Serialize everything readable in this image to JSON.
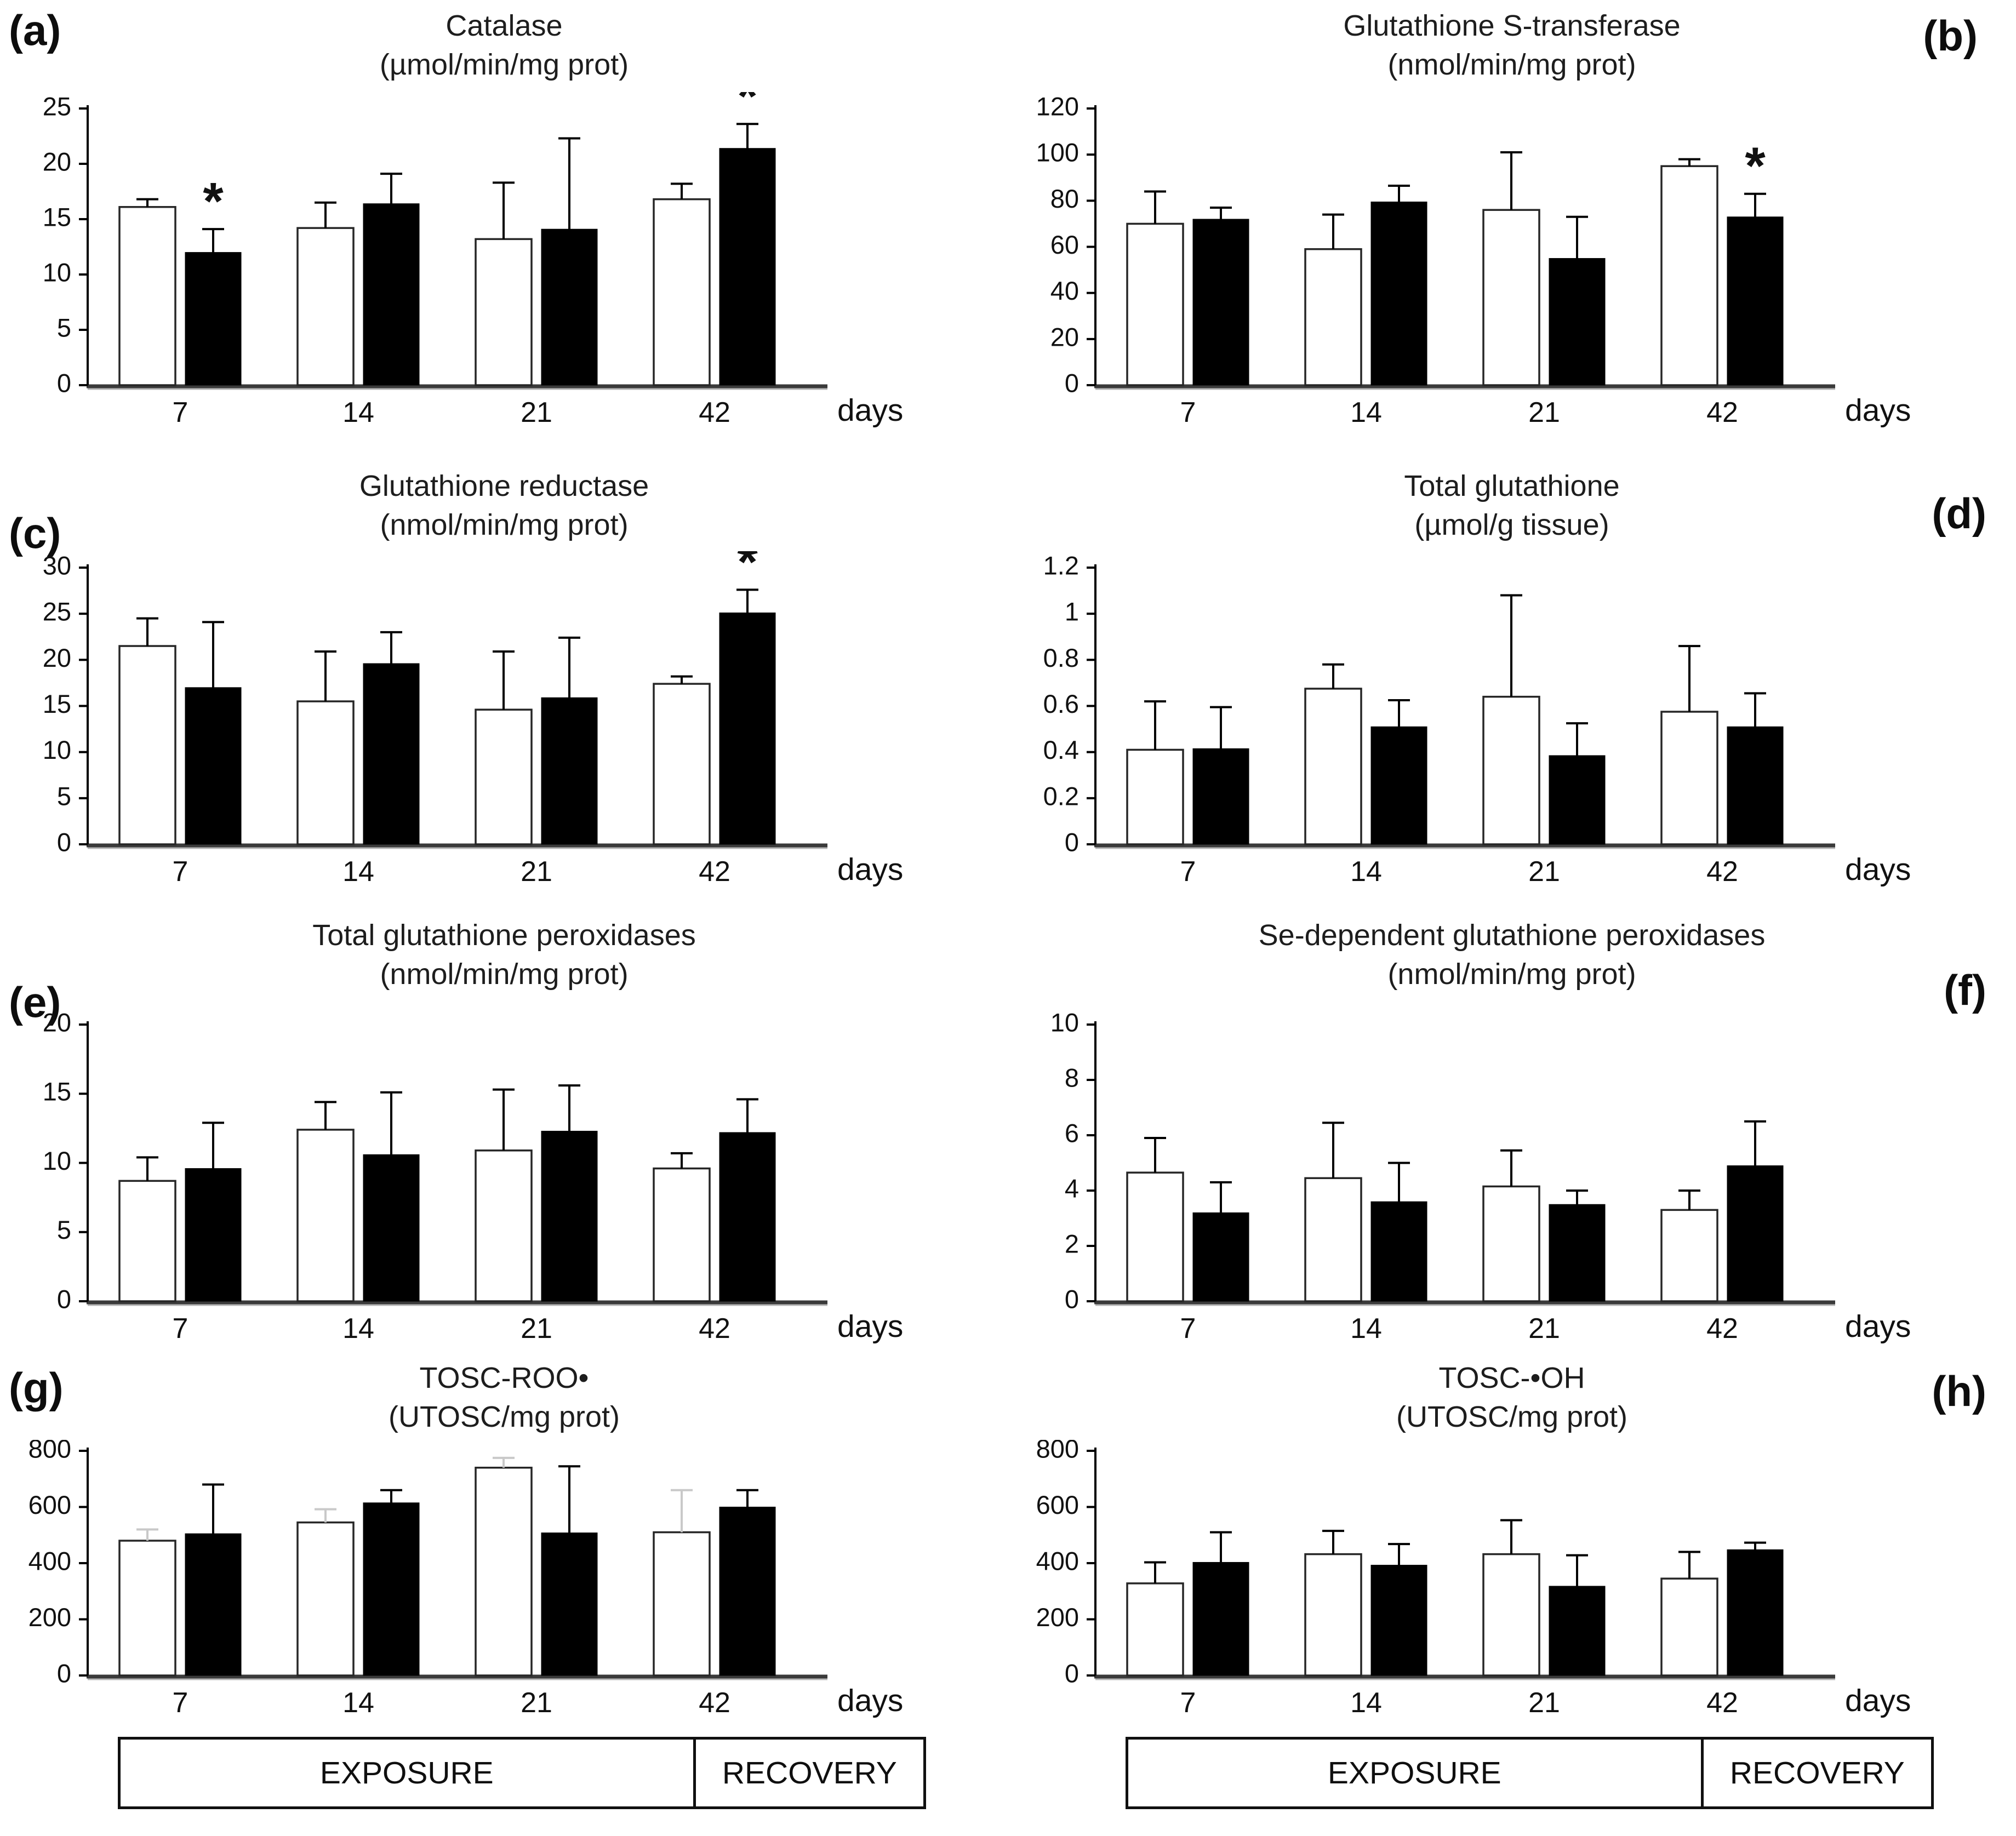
{
  "figure": {
    "phase_bar": {
      "exposure_label": "EXPOSURE",
      "recovery_label": "RECOVERY"
    },
    "colors": {
      "white_bar_fill": "#ffffff",
      "white_bar_stroke": "#262626",
      "black_bar_fill": "#000000",
      "gray_error_bar": "#c9c9c9",
      "axis": "#3a3a3a"
    }
  },
  "chart_data": [
    {
      "letter": "(a)",
      "title": "Catalase",
      "unit": "(µmol/min/mg prot)",
      "type": "bar",
      "categories": [
        "7",
        "14",
        "21",
        "42"
      ],
      "xlabel": "days",
      "ylim": [
        0,
        25
      ],
      "yticks": [
        0,
        5,
        10,
        15,
        20,
        25
      ],
      "grid": false,
      "legend": "none",
      "series": [
        {
          "name": "white_bars",
          "values": [
            16.1,
            14.2,
            13.2,
            16.8
          ],
          "errors_upper": [
            0.7,
            2.3,
            5.1,
            1.4
          ]
        },
        {
          "name": "black_bars",
          "values": [
            12.0,
            16.4,
            14.1,
            21.4
          ],
          "errors_upper": [
            2.1,
            2.7,
            8.2,
            2.2
          ]
        }
      ],
      "significance": [
        {
          "category": "7",
          "series": "black_bars",
          "symbol": "*"
        },
        {
          "category": "42",
          "series": "black_bars",
          "symbol": "*"
        }
      ]
    },
    {
      "letter": "(b)",
      "title": "Glutathione S-transferase",
      "unit": "(nmol/min/mg prot)",
      "type": "bar",
      "categories": [
        "7",
        "14",
        "21",
        "42"
      ],
      "xlabel": "days",
      "ylim": [
        0,
        120
      ],
      "yticks": [
        0,
        20,
        40,
        60,
        80,
        100,
        120
      ],
      "grid": false,
      "legend": "none",
      "series": [
        {
          "name": "white_bars",
          "values": [
            70,
            59,
            76,
            95
          ],
          "errors_upper": [
            14,
            15,
            25,
            3
          ]
        },
        {
          "name": "black_bars",
          "values": [
            72,
            79.5,
            55,
            73
          ],
          "errors_upper": [
            5,
            7,
            18,
            10
          ]
        }
      ],
      "significance": [
        {
          "category": "42",
          "series": "black_bars",
          "symbol": "*"
        }
      ]
    },
    {
      "letter": "(c)",
      "title": "Glutathione reductase",
      "unit": "(nmol/min/mg prot)",
      "type": "bar",
      "categories": [
        "7",
        "14",
        "21",
        "42"
      ],
      "xlabel": "days",
      "ylim": [
        0,
        30
      ],
      "yticks": [
        0,
        5,
        10,
        15,
        20,
        25,
        30
      ],
      "grid": false,
      "legend": "none",
      "series": [
        {
          "name": "white_bars",
          "values": [
            21.5,
            15.5,
            14.6,
            17.4
          ],
          "errors_upper": [
            3.0,
            5.4,
            6.3,
            0.8
          ]
        },
        {
          "name": "black_bars",
          "values": [
            17.0,
            19.6,
            15.9,
            25.1
          ],
          "errors_upper": [
            7.1,
            3.4,
            6.5,
            2.5
          ]
        }
      ],
      "significance": [
        {
          "category": "42",
          "series": "black_bars",
          "symbol": "*"
        }
      ]
    },
    {
      "letter": "(d)",
      "title": "Total glutathione",
      "unit": "(µmol/g tissue)",
      "type": "bar",
      "categories": [
        "7",
        "14",
        "21",
        "42"
      ],
      "xlabel": "days",
      "ylim": [
        0,
        1.2
      ],
      "yticks": [
        0,
        0.2,
        0.4,
        0.6,
        0.8,
        1,
        1.2
      ],
      "grid": false,
      "legend": "none",
      "series": [
        {
          "name": "white_bars",
          "values": [
            0.41,
            0.675,
            0.64,
            0.575
          ],
          "errors_upper": [
            0.21,
            0.105,
            0.44,
            0.285
          ]
        },
        {
          "name": "black_bars",
          "values": [
            0.415,
            0.51,
            0.385,
            0.51
          ],
          "errors_upper": [
            0.18,
            0.115,
            0.14,
            0.145
          ]
        }
      ],
      "significance": []
    },
    {
      "letter": "(e)",
      "title": "Total glutathione peroxidases",
      "unit": "(nmol/min/mg prot)",
      "type": "bar",
      "categories": [
        "7",
        "14",
        "21",
        "42"
      ],
      "xlabel": "days",
      "ylim": [
        0,
        20
      ],
      "yticks": [
        0,
        5,
        10,
        15,
        20
      ],
      "grid": false,
      "legend": "none",
      "series": [
        {
          "name": "white_bars",
          "values": [
            8.7,
            12.4,
            10.9,
            9.6
          ],
          "errors_upper": [
            1.7,
            2.0,
            4.4,
            1.1
          ]
        },
        {
          "name": "black_bars",
          "values": [
            9.6,
            10.6,
            12.3,
            12.2
          ],
          "errors_upper": [
            3.3,
            4.5,
            3.3,
            2.4
          ]
        }
      ],
      "significance": []
    },
    {
      "letter": "(f)",
      "title": "Se-dependent glutathione peroxidases",
      "unit": "(nmol/min/mg prot)",
      "type": "bar",
      "categories": [
        "7",
        "14",
        "21",
        "42"
      ],
      "xlabel": "days",
      "ylim": [
        0,
        10
      ],
      "yticks": [
        0,
        2,
        4,
        6,
        8,
        10
      ],
      "grid": false,
      "legend": "none",
      "series": [
        {
          "name": "white_bars",
          "values": [
            4.65,
            4.45,
            4.15,
            3.3
          ],
          "errors_upper": [
            1.25,
            2.0,
            1.3,
            0.7
          ]
        },
        {
          "name": "black_bars",
          "values": [
            3.2,
            3.6,
            3.5,
            4.9
          ],
          "errors_upper": [
            1.1,
            1.4,
            0.5,
            1.6
          ]
        }
      ],
      "significance": []
    },
    {
      "letter": "(g)",
      "title": "TOSC-ROO•",
      "unit": "(UTOSC/mg prot)",
      "type": "bar",
      "categories": [
        "7",
        "14",
        "21",
        "42"
      ],
      "xlabel": "days",
      "ylim": [
        0,
        800
      ],
      "yticks": [
        0,
        200,
        400,
        600,
        800
      ],
      "grid": false,
      "legend": "none",
      "series": [
        {
          "name": "white_bars",
          "values": [
            480,
            545,
            740,
            510
          ],
          "errors_upper": [
            40,
            47,
            35,
            150
          ],
          "error_color": "#c9c9c9"
        },
        {
          "name": "black_bars",
          "values": [
            505,
            615,
            508,
            600
          ],
          "errors_upper": [
            175,
            45,
            237,
            60
          ]
        }
      ],
      "significance": []
    },
    {
      "letter": "(h)",
      "title": "TOSC-•OH",
      "unit": "(UTOSC/mg prot)",
      "type": "bar",
      "categories": [
        "7",
        "14",
        "21",
        "42"
      ],
      "xlabel": "days",
      "ylim": [
        0,
        800
      ],
      "yticks": [
        0,
        200,
        400,
        600,
        800
      ],
      "grid": false,
      "legend": "none",
      "series": [
        {
          "name": "white_bars",
          "values": [
            328,
            432,
            432,
            345
          ],
          "errors_upper": [
            75,
            83,
            121,
            95
          ]
        },
        {
          "name": "black_bars",
          "values": [
            403,
            393,
            318,
            448
          ],
          "errors_upper": [
            107,
            75,
            110,
            25
          ]
        }
      ],
      "significance": []
    }
  ]
}
